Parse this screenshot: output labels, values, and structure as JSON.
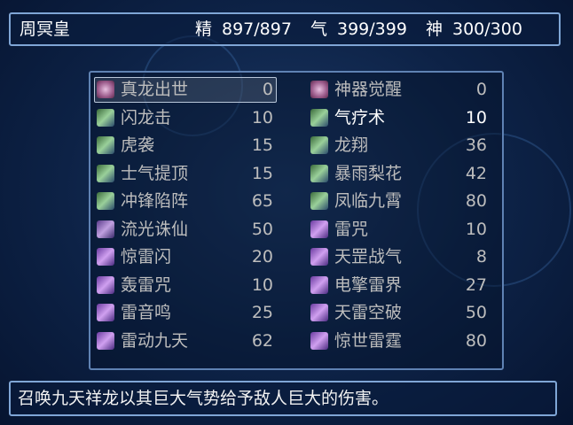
{
  "header": {
    "name": "周冥皇",
    "stats": [
      {
        "label": "精",
        "value": "897/897"
      },
      {
        "label": "气",
        "value": "399/399"
      },
      {
        "label": "神",
        "value": "300/300"
      }
    ]
  },
  "skills": {
    "selected": 0,
    "rows": [
      {
        "name": "真龙出世",
        "cost": 0,
        "icon": "ultimate"
      },
      {
        "name": "神器觉醒",
        "cost": 0,
        "icon": "ultimate"
      },
      {
        "name": "闪龙击",
        "cost": 10,
        "icon": "sword"
      },
      {
        "name": "气疗术",
        "cost": 10,
        "icon": "sword",
        "usable": true
      },
      {
        "name": "虎袭",
        "cost": 15,
        "icon": "sword"
      },
      {
        "name": "龙翔",
        "cost": 36,
        "icon": "sword"
      },
      {
        "name": "士气提顶",
        "cost": 15,
        "icon": "sword"
      },
      {
        "name": "暴雨梨花",
        "cost": 42,
        "icon": "sword"
      },
      {
        "name": "冲锋陷阵",
        "cost": 65,
        "icon": "sword"
      },
      {
        "name": "凤临九霄",
        "cost": 80,
        "icon": "sword"
      },
      {
        "name": "流光诛仙",
        "cost": 50,
        "icon": "blade"
      },
      {
        "name": "雷咒",
        "cost": 10,
        "icon": "thunder"
      },
      {
        "name": "惊雷闪",
        "cost": 20,
        "icon": "thunder"
      },
      {
        "name": "天罡战气",
        "cost": 8,
        "icon": "thunder"
      },
      {
        "name": "轰雷咒",
        "cost": 10,
        "icon": "thunder"
      },
      {
        "name": "电擎雷界",
        "cost": 27,
        "icon": "thunder"
      },
      {
        "name": "雷音鸣",
        "cost": 25,
        "icon": "thunder"
      },
      {
        "name": "天雷空破",
        "cost": 50,
        "icon": "thunder"
      },
      {
        "name": "雷动九天",
        "cost": 62,
        "icon": "thunder"
      },
      {
        "name": "惊世雷霆",
        "cost": 80,
        "icon": "thunder"
      }
    ]
  },
  "description": "召唤九天祥龙以其巨大气势给予敌人巨大的伤害。"
}
